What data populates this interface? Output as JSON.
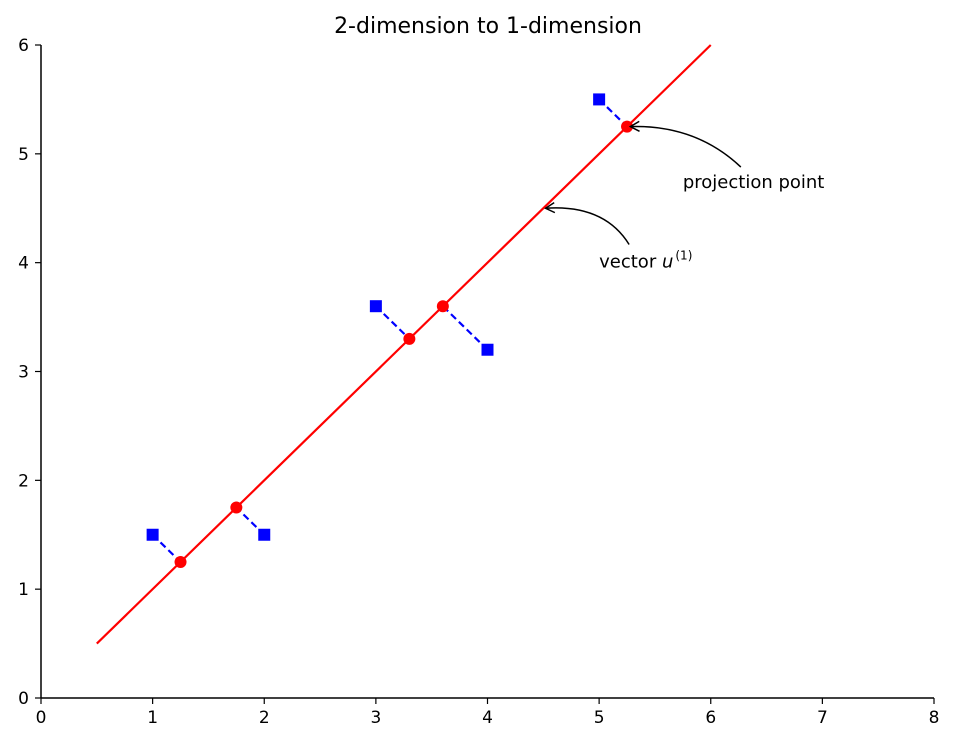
{
  "chart_data": {
    "type": "scatter",
    "title": "2-dimension to 1-dimension",
    "xlabel": "",
    "ylabel": "",
    "xlim": [
      0,
      8
    ],
    "ylim": [
      0,
      6
    ],
    "xticks": [
      "0",
      "1",
      "2",
      "3",
      "4",
      "5",
      "6",
      "7",
      "8"
    ],
    "yticks": [
      "0",
      "1",
      "2",
      "3",
      "4",
      "5",
      "6"
    ],
    "grid": false,
    "series": [
      {
        "kind": "line",
        "color": "#ff0000",
        "style": "solid",
        "x": [
          0.5,
          6.0
        ],
        "y": [
          0.5,
          6.0
        ]
      },
      {
        "kind": "points",
        "marker": "square",
        "color": "#0000ff",
        "x": [
          1.0,
          2.0,
          3.0,
          4.0,
          5.0
        ],
        "y": [
          1.5,
          1.5,
          3.6,
          3.2,
          5.5
        ]
      },
      {
        "kind": "points",
        "marker": "circle",
        "color": "#ff0000",
        "x": [
          1.25,
          1.75,
          3.3,
          3.6,
          5.25
        ],
        "y": [
          1.25,
          1.75,
          3.3,
          3.6,
          5.25
        ]
      },
      {
        "kind": "segments",
        "color": "#0000ff",
        "style": "dashed",
        "pairs": [
          [
            [
              1.0,
              1.5
            ],
            [
              1.25,
              1.25
            ]
          ],
          [
            [
              2.0,
              1.5
            ],
            [
              1.75,
              1.75
            ]
          ],
          [
            [
              3.0,
              3.6
            ],
            [
              3.3,
              3.3
            ]
          ],
          [
            [
              4.0,
              3.2
            ],
            [
              3.6,
              3.6
            ]
          ],
          [
            [
              5.0,
              5.5
            ],
            [
              5.25,
              5.25
            ]
          ]
        ]
      }
    ],
    "annotations": [
      {
        "text": "projection point",
        "text_xy": [
          5.75,
          4.75
        ],
        "arrow_to": [
          5.28,
          5.25
        ]
      },
      {
        "text": "vector u",
        "superscript": "(1)",
        "text_xy": [
          5.0,
          4.02
        ],
        "arrow_to": [
          4.52,
          4.5
        ]
      }
    ]
  }
}
